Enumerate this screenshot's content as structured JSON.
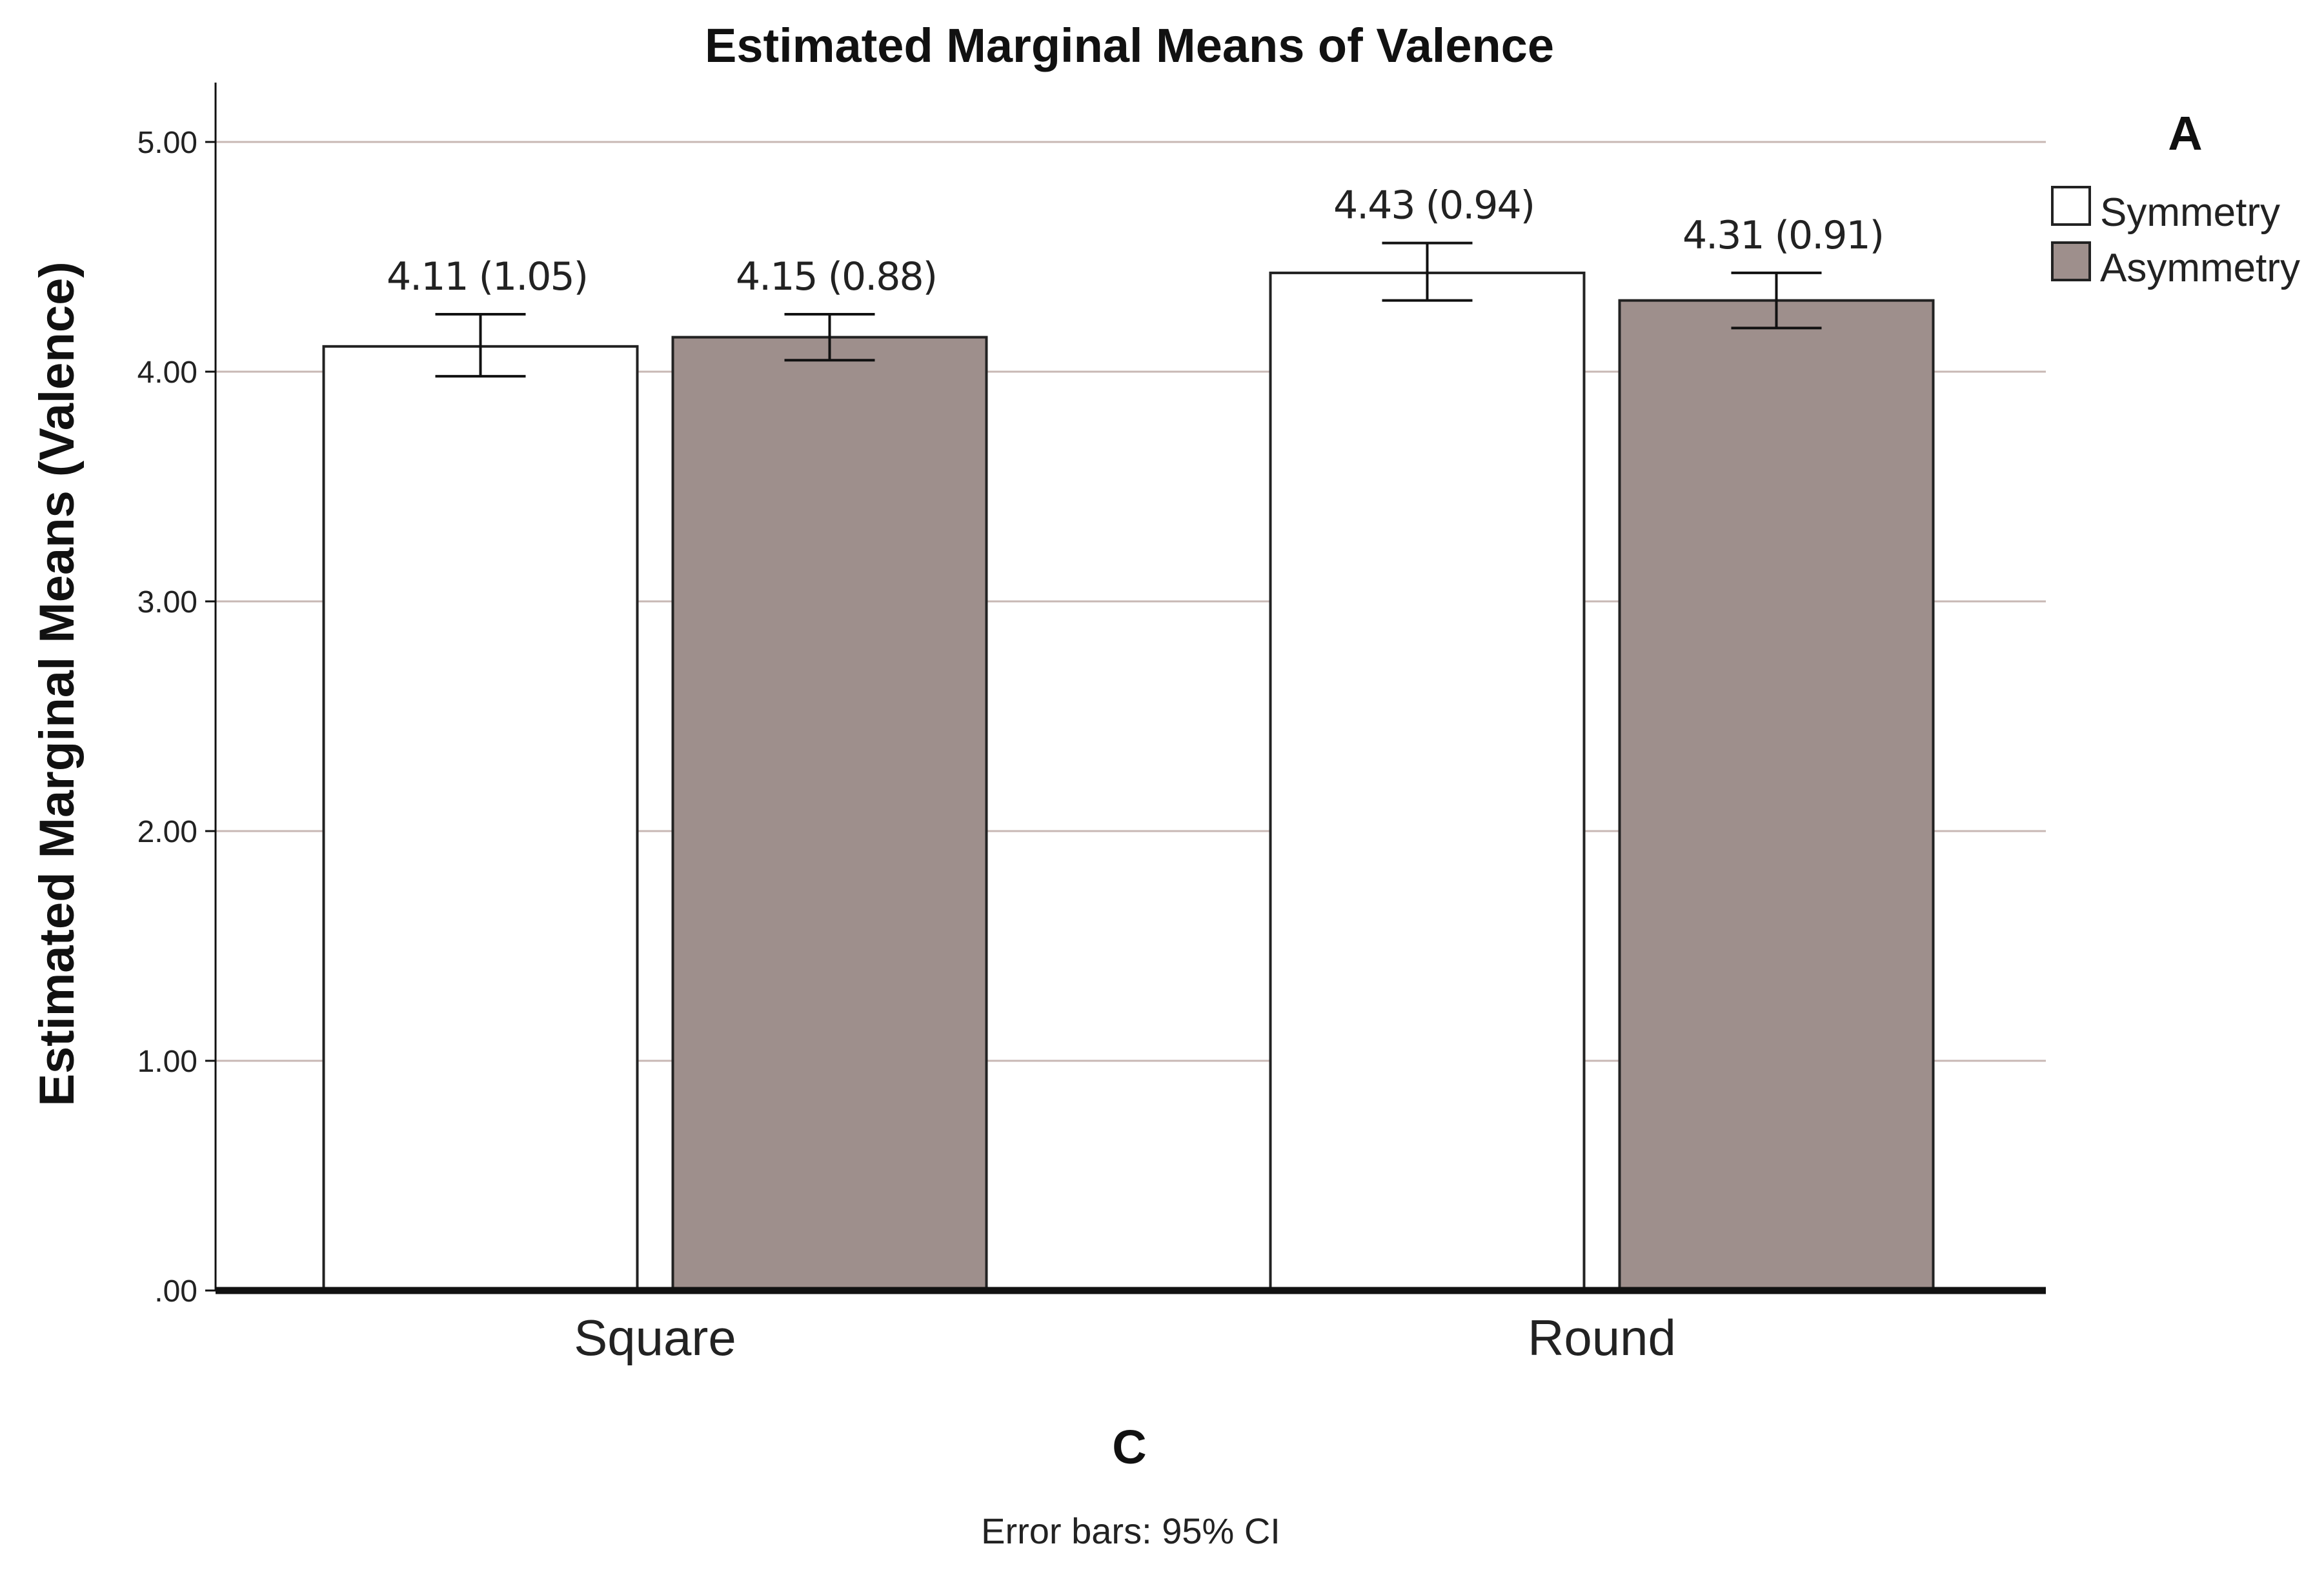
{
  "chart_data": {
    "type": "bar",
    "title": "Estimated Marginal Means of Valence",
    "xlabel": "C",
    "ylabel": "Estimated Marginal Means (Valence)",
    "categories": [
      "Square",
      "Round"
    ],
    "ylim": [
      0,
      5.2
    ],
    "yticks": [
      0,
      1,
      2,
      3,
      4,
      5
    ],
    "ytick_labels": [
      ".00",
      "1.00",
      "2.00",
      "3.00",
      "4.00",
      "5.00"
    ],
    "grid": true,
    "legend": {
      "title": "A",
      "placement": "top-right"
    },
    "series": [
      {
        "name": "Symmetry",
        "color": "#ffffff",
        "values": [
          4.11,
          4.43
        ],
        "ci_low": [
          3.98,
          4.31
        ],
        "ci_high": [
          4.25,
          4.56
        ],
        "labels": [
          "4.11 (1.05)",
          "4.43 (0.94)"
        ]
      },
      {
        "name": "Asymmetry",
        "color": "#9e8f8c",
        "values": [
          4.15,
          4.31
        ],
        "ci_low": [
          4.05,
          4.19
        ],
        "ci_high": [
          4.25,
          4.43
        ],
        "labels": [
          "4.15 (0.88)",
          "4.31 (0.91)"
        ]
      }
    ],
    "footnote": "Error bars: 95% CI"
  },
  "colors": {
    "grid": "#c8b8b4",
    "axis": "#111111",
    "bar_outline": "#222222"
  }
}
